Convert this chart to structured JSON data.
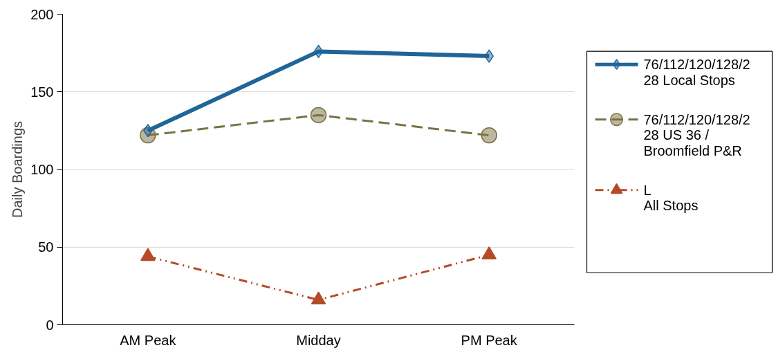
{
  "chart_data": {
    "type": "line",
    "ylabel": "Daily Boardings",
    "categories": [
      "AM Peak",
      "Midday",
      "PM Peak"
    ],
    "series": [
      {
        "name": "76/112/120/128/2\n28 Local Stops",
        "color": "#1f6597",
        "marker": "diamond",
        "line_style": "solid",
        "values": [
          125,
          176,
          173
        ]
      },
      {
        "name": "76/112/120/128/2\n28 US 36 /\nBroomfield P&R",
        "color": "#7a7242",
        "marker": "circle",
        "line_style": "dashed",
        "values": [
          122,
          135,
          122
        ]
      },
      {
        "name": "L\nAll Stops",
        "color": "#b54a29",
        "marker": "triangle",
        "line_style": "dashdotdot",
        "values": [
          44,
          16,
          45
        ]
      }
    ],
    "ylim": [
      0,
      200
    ],
    "yticks": [
      0,
      50,
      100,
      150,
      200
    ],
    "grid": "y",
    "legend": "right"
  }
}
